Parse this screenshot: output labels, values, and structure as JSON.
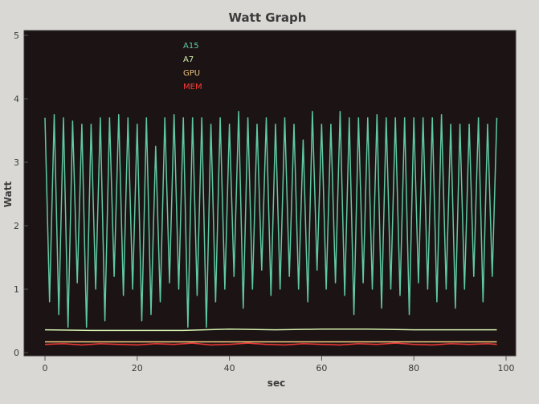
{
  "chart_data": {
    "type": "line",
    "title": "Watt Graph",
    "xlabel": "sec",
    "ylabel": "Watt",
    "xlim": [
      0,
      100
    ],
    "ylim": [
      0,
      5
    ],
    "xticks": [
      0,
      20,
      40,
      60,
      80,
      100
    ],
    "yticks": [
      0,
      1,
      2,
      3,
      4,
      5
    ],
    "grid": false,
    "legend_position": "top-left",
    "plot_background": "#1c1414",
    "series": [
      {
        "name": "A15",
        "color": "#5fc9a6",
        "x": [
          0,
          1,
          2,
          3,
          4,
          5,
          6,
          7,
          8,
          9,
          10,
          11,
          12,
          13,
          14,
          15,
          16,
          17,
          18,
          19,
          20,
          21,
          22,
          23,
          24,
          25,
          26,
          27,
          28,
          29,
          30,
          31,
          32,
          33,
          34,
          35,
          36,
          37,
          38,
          39,
          40,
          41,
          42,
          43,
          44,
          45,
          46,
          47,
          48,
          49,
          50,
          51,
          52,
          53,
          54,
          55,
          56,
          57,
          58,
          59,
          60,
          61,
          62,
          63,
          64,
          65,
          66,
          67,
          68,
          69,
          70,
          71,
          72,
          73,
          74,
          75,
          76,
          77,
          78,
          79,
          80,
          81,
          82,
          83,
          84,
          85,
          86,
          87,
          88,
          89,
          90,
          91,
          92,
          93,
          94,
          95,
          96,
          97,
          98
        ],
        "values": [
          3.7,
          0.8,
          3.75,
          0.6,
          3.7,
          0.4,
          3.65,
          1.1,
          3.6,
          0.4,
          3.6,
          1.0,
          3.7,
          0.5,
          3.7,
          1.2,
          3.75,
          0.9,
          3.7,
          1.0,
          3.6,
          0.5,
          3.7,
          0.6,
          3.25,
          0.8,
          3.7,
          1.1,
          3.75,
          1.0,
          3.7,
          0.4,
          3.7,
          0.9,
          3.7,
          0.4,
          3.6,
          0.8,
          3.7,
          1.0,
          3.6,
          1.2,
          3.8,
          0.7,
          3.7,
          1.0,
          3.6,
          1.3,
          3.7,
          0.9,
          3.6,
          1.0,
          3.7,
          1.2,
          3.6,
          1.0,
          3.35,
          0.8,
          3.8,
          1.3,
          3.6,
          1.0,
          3.6,
          1.1,
          3.8,
          0.9,
          3.7,
          0.6,
          3.7,
          1.1,
          3.7,
          1.0,
          3.75,
          0.7,
          3.7,
          1.0,
          3.7,
          0.9,
          3.7,
          0.6,
          3.7,
          1.1,
          3.7,
          1.0,
          3.7,
          0.8,
          3.75,
          1.0,
          3.6,
          0.7,
          3.6,
          1.0,
          3.6,
          1.2,
          3.7,
          0.8,
          3.6,
          1.2,
          3.7
        ]
      },
      {
        "name": "A7",
        "color": "#d4f0b0",
        "x": [
          0,
          10,
          20,
          30,
          40,
          50,
          60,
          70,
          80,
          90,
          98
        ],
        "values": [
          0.36,
          0.35,
          0.35,
          0.35,
          0.37,
          0.36,
          0.37,
          0.37,
          0.36,
          0.36,
          0.36
        ]
      },
      {
        "name": "GPU",
        "color": "#e8c07a",
        "x": [
          0,
          20,
          40,
          60,
          80,
          98
        ],
        "values": [
          0.17,
          0.17,
          0.17,
          0.17,
          0.17,
          0.17
        ]
      },
      {
        "name": "MEM",
        "color": "#ff3b3b",
        "x": [
          0,
          4,
          8,
          12,
          16,
          20,
          24,
          28,
          32,
          36,
          40,
          44,
          48,
          52,
          56,
          60,
          64,
          68,
          72,
          76,
          80,
          84,
          88,
          92,
          96,
          98
        ],
        "values": [
          0.13,
          0.14,
          0.12,
          0.14,
          0.13,
          0.12,
          0.14,
          0.13,
          0.15,
          0.12,
          0.13,
          0.15,
          0.13,
          0.12,
          0.14,
          0.13,
          0.12,
          0.14,
          0.13,
          0.15,
          0.13,
          0.12,
          0.14,
          0.13,
          0.14,
          0.13
        ]
      }
    ]
  }
}
